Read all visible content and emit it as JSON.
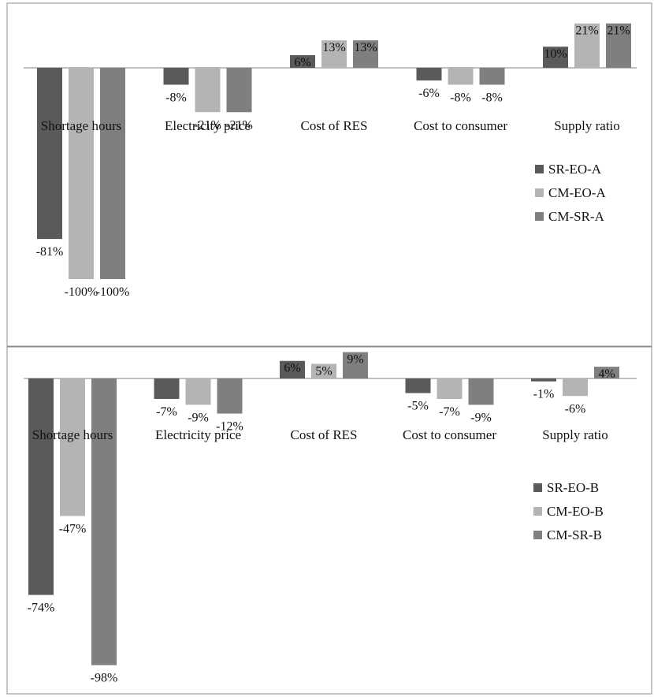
{
  "colors": {
    "series_1": "#5a5a5a",
    "series_2": "#b4b4b4",
    "series_3": "#7f7f7f",
    "frame": "#8c8c8c",
    "axis": "#7f7f7f",
    "text": "#111111"
  },
  "chart_data": [
    {
      "type": "bar",
      "title": "",
      "xlabel": "",
      "ylabel": "",
      "ylim": [
        -100,
        21
      ],
      "grid": false,
      "legend_position": "right",
      "categories": [
        "Shortage hours",
        "Electricity price",
        "Cost of RES",
        "Cost to consumer",
        "Supply ratio"
      ],
      "series": [
        {
          "name": "SR-EO-A",
          "values": [
            -81,
            -8,
            6,
            -6,
            10
          ],
          "labels": [
            "-81%",
            "-8%",
            "6%",
            "-6%",
            "10%"
          ]
        },
        {
          "name": "CM-EO-A",
          "values": [
            -100,
            -21,
            13,
            -8,
            21
          ],
          "labels": [
            "-100%",
            "-21%",
            "13%",
            "-8%",
            "21%"
          ]
        },
        {
          "name": "CM-SR-A",
          "values": [
            -100,
            -21,
            13,
            -8,
            21
          ],
          "labels": [
            "-100%",
            "-21%",
            "13%",
            "-8%",
            "21%"
          ]
        }
      ]
    },
    {
      "type": "bar",
      "title": "",
      "xlabel": "",
      "ylabel": "",
      "ylim": [
        -98,
        9
      ],
      "grid": false,
      "legend_position": "right",
      "categories": [
        "Shortage hours",
        "Electricity price",
        "Cost of RES",
        "Cost to consumer",
        "Supply ratio"
      ],
      "series": [
        {
          "name": "SR-EO-B",
          "values": [
            -74,
            -7,
            6,
            -5,
            -1
          ],
          "labels": [
            "-74%",
            "-7%",
            "6%",
            "-5%",
            "-1%"
          ]
        },
        {
          "name": "CM-EO-B",
          "values": [
            -47,
            -9,
            5,
            -7,
            -6
          ],
          "labels": [
            "-47%",
            "-9%",
            "5%",
            "-7%",
            "-6%"
          ]
        },
        {
          "name": "CM-SR-B",
          "values": [
            -98,
            -12,
            9,
            -9,
            4
          ],
          "labels": [
            "-98%",
            "-12%",
            "9%",
            "-9%",
            "4%"
          ]
        }
      ]
    }
  ]
}
